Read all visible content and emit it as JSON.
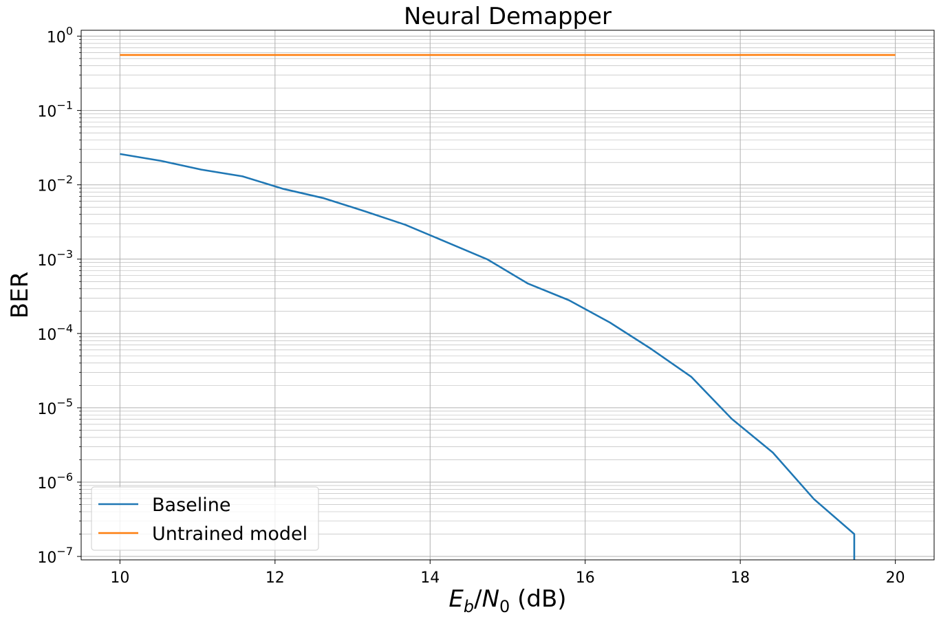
{
  "chart_data": {
    "type": "line",
    "title": "Neural Demapper",
    "xlabel": {
      "E": "E",
      "b": "b",
      "slash": "/",
      "N": "N",
      "zero": "0",
      "unit": " (dB)"
    },
    "ylabel": "BER",
    "xlim": [
      9.5,
      20.5
    ],
    "ylim": [
      9e-08,
      1.2
    ],
    "yscale": "log",
    "grid": "major and minor",
    "legend_position": "lower-left",
    "xticks": [
      "10",
      "12",
      "14",
      "16",
      "18",
      "20"
    ],
    "yticks": [
      {
        "base": "10",
        "exp": "0"
      },
      {
        "base": "10",
        "exp": "−1"
      },
      {
        "base": "10",
        "exp": "−2"
      },
      {
        "base": "10",
        "exp": "−3"
      },
      {
        "base": "10",
        "exp": "−4"
      },
      {
        "base": "10",
        "exp": "−5"
      },
      {
        "base": "10",
        "exp": "−6"
      },
      {
        "base": "10",
        "exp": "−7"
      }
    ],
    "series": [
      {
        "name": "Baseline",
        "color": "#1f77b4",
        "x": [
          10.0,
          10.53,
          11.05,
          11.58,
          12.11,
          12.63,
          13.16,
          13.68,
          14.21,
          14.74,
          15.26,
          15.79,
          16.32,
          16.84,
          17.37,
          17.89,
          18.42,
          18.95,
          19.47,
          19.47
        ],
        "y": [
          0.026,
          0.021,
          0.016,
          0.013,
          0.0088,
          0.0066,
          0.0044,
          0.0029,
          0.0017,
          0.00099,
          0.00047,
          0.00028,
          0.00014,
          6.3e-05,
          2.6e-05,
          7.1e-06,
          2.5e-06,
          5.9e-07,
          2e-07,
          9e-08
        ]
      },
      {
        "name": "Untrained model",
        "color": "#ff7f0e",
        "x": [
          10.0,
          10.53,
          11.05,
          11.58,
          12.11,
          12.63,
          13.16,
          13.68,
          14.21,
          14.74,
          15.26,
          15.79,
          16.32,
          16.84,
          17.37,
          17.89,
          18.42,
          18.95,
          19.47,
          20.0
        ],
        "y": [
          0.558,
          0.558,
          0.558,
          0.558,
          0.558,
          0.558,
          0.558,
          0.558,
          0.558,
          0.558,
          0.558,
          0.558,
          0.558,
          0.559,
          0.559,
          0.559,
          0.56,
          0.559,
          0.559,
          0.559
        ]
      }
    ]
  }
}
